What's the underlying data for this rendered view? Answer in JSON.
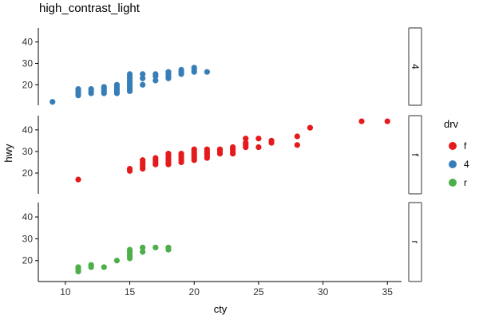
{
  "chart_data": {
    "type": "scatter",
    "title": "high_contrast_light",
    "xlabel": "cty",
    "ylabel": "hwy",
    "xlim": [
      7.9,
      36.1
    ],
    "ylim": [
      10.4,
      46.6
    ],
    "x_ticks": [
      10,
      15,
      20,
      25,
      30,
      35
    ],
    "y_ticks": [
      20,
      30,
      40
    ],
    "facet_variable": "drv",
    "facets": [
      "4",
      "f",
      "r"
    ],
    "legend": {
      "title": "drv",
      "position": "right",
      "entries": [
        {
          "label": "f",
          "color": "#E41A1C"
        },
        {
          "label": "4",
          "color": "#377EB8"
        },
        {
          "label": "r",
          "color": "#4DAF4A"
        }
      ]
    },
    "series": [
      {
        "name": "4",
        "color": "#377EB8",
        "points": [
          [
            9,
            12
          ],
          [
            11,
            15
          ],
          [
            11,
            16
          ],
          [
            11,
            17
          ],
          [
            11,
            18
          ],
          [
            12,
            16
          ],
          [
            12,
            17
          ],
          [
            12,
            18
          ],
          [
            13,
            16
          ],
          [
            13,
            17
          ],
          [
            13,
            18
          ],
          [
            13,
            19
          ],
          [
            14,
            16
          ],
          [
            14,
            17
          ],
          [
            14,
            18
          ],
          [
            14,
            19
          ],
          [
            14,
            20
          ],
          [
            15,
            17
          ],
          [
            15,
            18
          ],
          [
            15,
            19
          ],
          [
            15,
            20
          ],
          [
            15,
            21
          ],
          [
            15,
            22
          ],
          [
            15,
            23
          ],
          [
            15,
            24
          ],
          [
            15,
            25
          ],
          [
            16,
            20
          ],
          [
            16,
            23
          ],
          [
            16,
            25
          ],
          [
            17,
            22
          ],
          [
            17,
            24
          ],
          [
            17,
            25
          ],
          [
            18,
            23
          ],
          [
            18,
            24
          ],
          [
            18,
            25
          ],
          [
            18,
            26
          ],
          [
            19,
            25
          ],
          [
            19,
            26
          ],
          [
            19,
            27
          ],
          [
            20,
            26
          ],
          [
            20,
            27
          ],
          [
            20,
            28
          ],
          [
            21,
            26
          ]
        ]
      },
      {
        "name": "f",
        "color": "#E41A1C",
        "points": [
          [
            11,
            17
          ],
          [
            15,
            21
          ],
          [
            15,
            22
          ],
          [
            16,
            22
          ],
          [
            16,
            23
          ],
          [
            16,
            24
          ],
          [
            16,
            25
          ],
          [
            16,
            26
          ],
          [
            17,
            24
          ],
          [
            17,
            25
          ],
          [
            17,
            26
          ],
          [
            17,
            27
          ],
          [
            18,
            24
          ],
          [
            18,
            25
          ],
          [
            18,
            26
          ],
          [
            18,
            27
          ],
          [
            18,
            28
          ],
          [
            18,
            29
          ],
          [
            19,
            25
          ],
          [
            19,
            26
          ],
          [
            19,
            27
          ],
          [
            19,
            28
          ],
          [
            19,
            29
          ],
          [
            20,
            26
          ],
          [
            20,
            27
          ],
          [
            20,
            28
          ],
          [
            20,
            29
          ],
          [
            20,
            30
          ],
          [
            20,
            31
          ],
          [
            21,
            27
          ],
          [
            21,
            28
          ],
          [
            21,
            29
          ],
          [
            21,
            30
          ],
          [
            21,
            31
          ],
          [
            22,
            29
          ],
          [
            22,
            30
          ],
          [
            22,
            31
          ],
          [
            23,
            29
          ],
          [
            23,
            30
          ],
          [
            23,
            31
          ],
          [
            23,
            32
          ],
          [
            24,
            32
          ],
          [
            24,
            33
          ],
          [
            24,
            34
          ],
          [
            24,
            36
          ],
          [
            25,
            32
          ],
          [
            25,
            36
          ],
          [
            26,
            34
          ],
          [
            26,
            35
          ],
          [
            28,
            33
          ],
          [
            28,
            37
          ],
          [
            29,
            41
          ],
          [
            33,
            44
          ],
          [
            35,
            44
          ]
        ]
      },
      {
        "name": "r",
        "color": "#4DAF4A",
        "points": [
          [
            11,
            15
          ],
          [
            11,
            16
          ],
          [
            11,
            17
          ],
          [
            12,
            17
          ],
          [
            12,
            18
          ],
          [
            13,
            17
          ],
          [
            14,
            20
          ],
          [
            15,
            21
          ],
          [
            15,
            22
          ],
          [
            15,
            23
          ],
          [
            15,
            24
          ],
          [
            15,
            25
          ],
          [
            16,
            24
          ],
          [
            16,
            26
          ],
          [
            17,
            26
          ],
          [
            18,
            25
          ],
          [
            18,
            26
          ]
        ]
      }
    ]
  }
}
